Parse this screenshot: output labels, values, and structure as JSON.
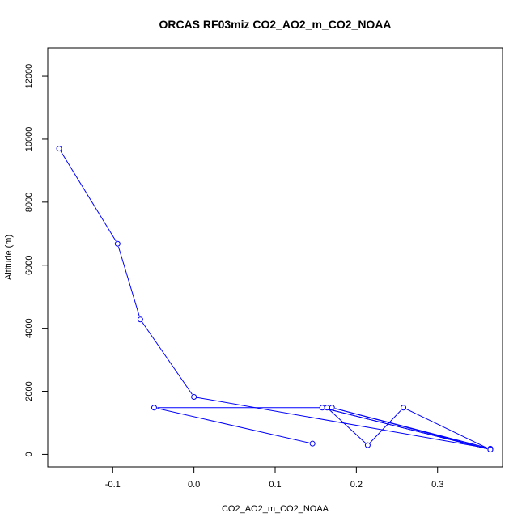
{
  "chart_data": {
    "type": "line",
    "title": "ORCAS RF03miz CO2_AO2_m_CO2_NOAA",
    "xlabel": "CO2_AO2_m_CO2_NOAA",
    "ylabel": "Altitude (m)",
    "xlim": [
      -0.18,
      0.38
    ],
    "ylim": [
      -400,
      12900
    ],
    "x_ticks": [
      -0.1,
      0.0,
      0.1,
      0.2,
      0.3
    ],
    "x_tick_labels": [
      "-0.1",
      "0.0",
      "0.1",
      "0.2",
      "0.3"
    ],
    "y_ticks": [
      0,
      2000,
      4000,
      6000,
      8000,
      10000,
      12000
    ],
    "y_tick_labels": [
      "0",
      "2000",
      "4000",
      "6000",
      "8000",
      "10000",
      "12000"
    ],
    "grid": false,
    "series": [
      {
        "color": "#0000ff",
        "marker": "open-circle",
        "x": [
          -0.166,
          -0.094,
          -0.066,
          0.0,
          0.365,
          0.17,
          0.365,
          0.158,
          0.365,
          0.258,
          0.214,
          0.164,
          -0.049,
          0.146
        ],
        "y": [
          9700,
          6680,
          4280,
          1820,
          180,
          1480,
          150,
          1480,
          150,
          1480,
          290,
          1480,
          1480,
          340
        ]
      }
    ]
  }
}
